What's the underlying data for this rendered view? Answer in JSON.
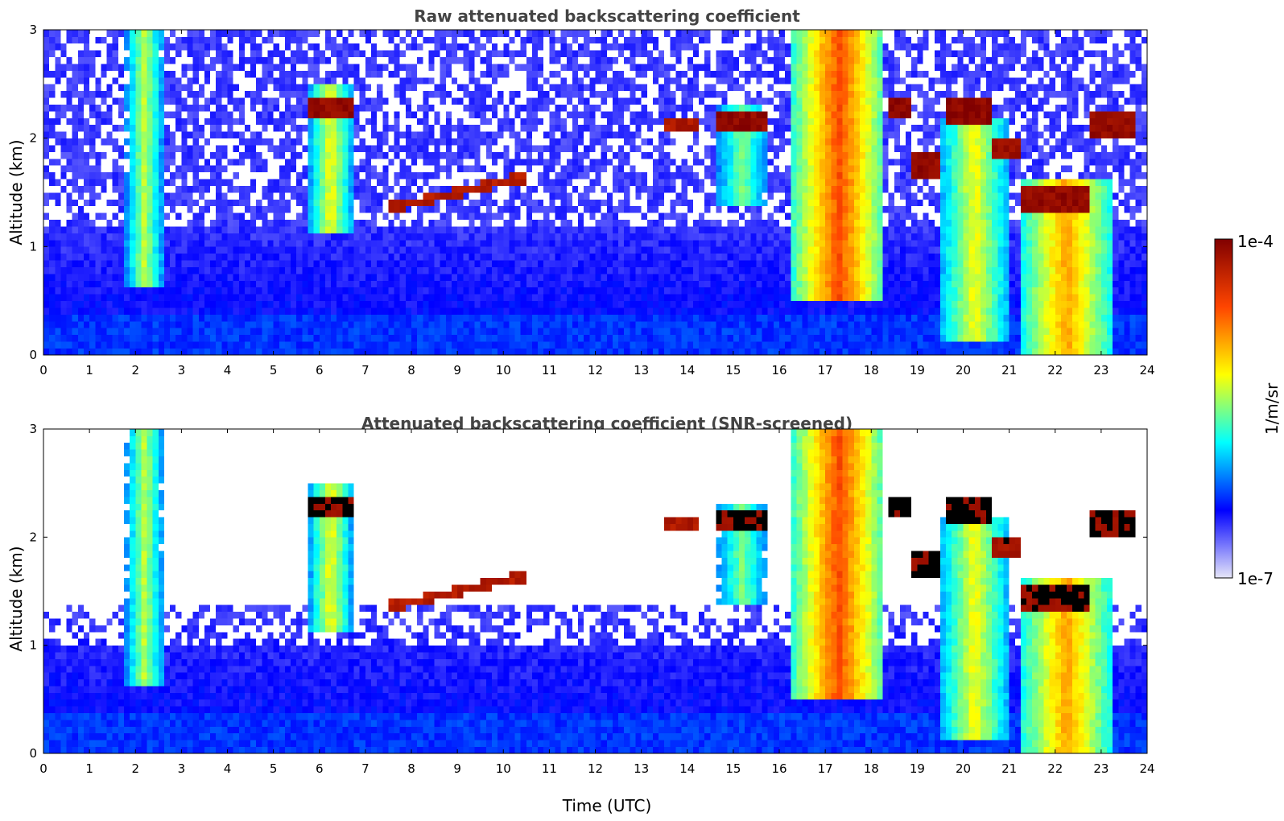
{
  "chart_data": [
    {
      "type": "heatmap",
      "title": "Raw attenuated backscattering coefficient",
      "xlabel": "",
      "ylabel": "Altitude (km)",
      "xlim": [
        0,
        24
      ],
      "ylim": [
        0,
        3
      ],
      "x_ticks": [
        "0",
        "1",
        "2",
        "3",
        "4",
        "5",
        "6",
        "7",
        "8",
        "9",
        "10",
        "11",
        "12",
        "13",
        "14",
        "15",
        "16",
        "17",
        "18",
        "19",
        "20",
        "21",
        "22",
        "23",
        "24"
      ],
      "y_ticks": [
        "0",
        "1",
        "2",
        "3"
      ],
      "screened": false
    },
    {
      "type": "heatmap",
      "title": "Attenuated backscattering coefficient (SNR-screened)",
      "xlabel": "Time (UTC)",
      "ylabel": "Altitude (km)",
      "xlim": [
        0,
        24
      ],
      "ylim": [
        0,
        3
      ],
      "x_ticks": [
        "0",
        "1",
        "2",
        "3",
        "4",
        "5",
        "6",
        "7",
        "8",
        "9",
        "10",
        "11",
        "12",
        "13",
        "14",
        "15",
        "16",
        "17",
        "18",
        "19",
        "20",
        "21",
        "22",
        "23",
        "24"
      ],
      "y_ticks": [
        "0",
        "1",
        "2",
        "3"
      ],
      "screened": true
    }
  ],
  "colorbar": {
    "label": "1/m/sr",
    "min_label": "1e-7",
    "max_label": "1e-4",
    "scale": "log",
    "colormap": [
      "#e6e6f8",
      "#0000ff",
      "#00ffff",
      "#ffff00",
      "#ff4500",
      "#800000"
    ]
  },
  "features": {
    "cloud_layers": [
      {
        "t0": 5.7,
        "t1": 6.7,
        "z": 2.3,
        "dz": 0.1,
        "level": 0.97
      },
      {
        "t0": 7.5,
        "t1": 10.5,
        "z0": 1.35,
        "z1": 1.65,
        "dz": 0.05,
        "level": 0.92
      },
      {
        "t0": 13.5,
        "t1": 14.2,
        "z": 2.15,
        "dz": 0.06,
        "level": 0.93
      },
      {
        "t0": 14.6,
        "t1": 15.7,
        "z": 2.15,
        "dz": 0.1,
        "level": 0.97
      },
      {
        "t0": 18.4,
        "t1": 18.9,
        "z": 2.3,
        "dz": 0.1,
        "level": 0.98
      },
      {
        "t0": 18.9,
        "t1": 19.5,
        "z": 1.75,
        "dz": 0.1,
        "level": 0.97
      },
      {
        "t0": 19.6,
        "t1": 20.6,
        "z": 2.25,
        "dz": 0.12,
        "level": 0.98
      },
      {
        "t0": 20.6,
        "t1": 21.2,
        "z": 1.9,
        "dz": 0.1,
        "level": 0.95
      },
      {
        "t0": 21.2,
        "t1": 22.7,
        "z": 1.45,
        "dz": 0.12,
        "level": 0.97
      },
      {
        "t0": 22.8,
        "t1": 23.7,
        "z": 2.1,
        "dz": 0.12,
        "level": 0.97
      }
    ],
    "precipitation_plumes": [
      {
        "t0": 1.8,
        "t1": 2.6,
        "top": 3.0,
        "bottom": 0.6,
        "level": 0.55
      },
      {
        "t0": 5.8,
        "t1": 6.7,
        "top": 2.5,
        "bottom": 1.1,
        "level": 0.6
      },
      {
        "t0": 14.6,
        "t1": 15.8,
        "top": 2.3,
        "bottom": 1.4,
        "level": 0.5
      },
      {
        "t0": 16.3,
        "t1": 18.3,
        "top": 3.0,
        "bottom": 0.5,
        "level": 0.8
      },
      {
        "t0": 19.5,
        "t1": 21.0,
        "top": 2.2,
        "bottom": 0.1,
        "level": 0.6
      },
      {
        "t0": 21.2,
        "t1": 23.3,
        "top": 1.6,
        "bottom": 0.0,
        "level": 0.7
      }
    ]
  }
}
